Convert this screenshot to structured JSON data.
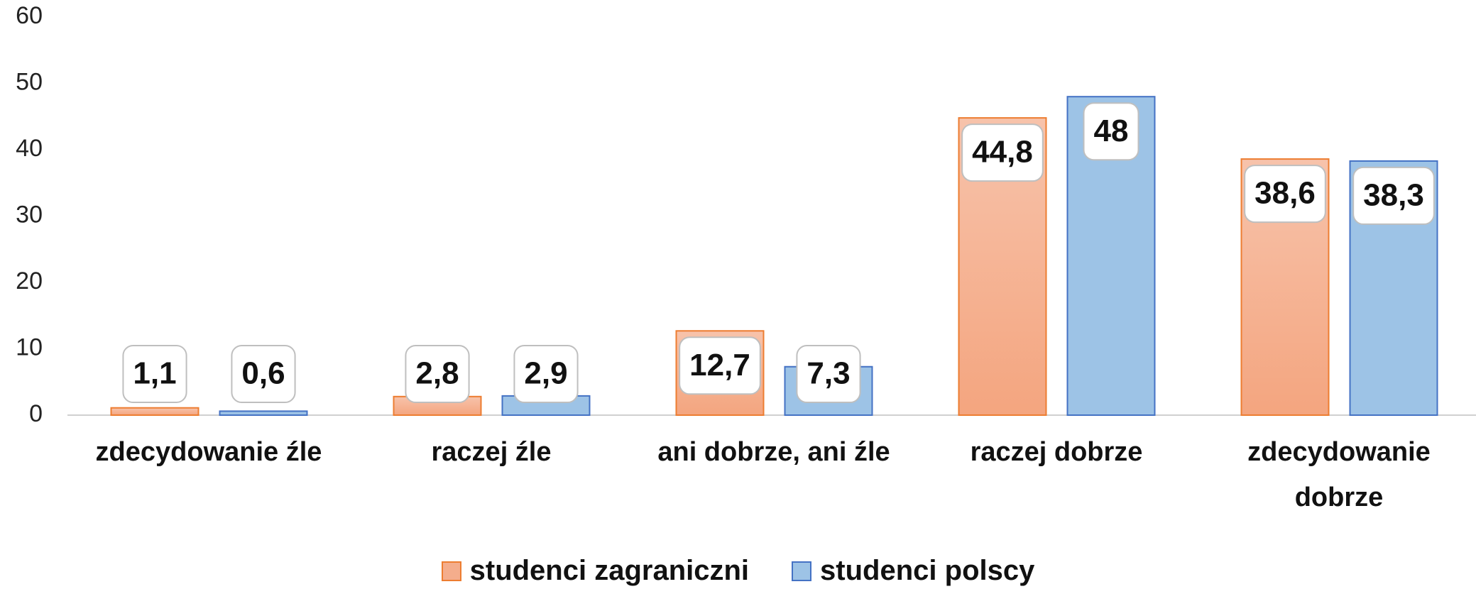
{
  "chart_data": {
    "type": "bar",
    "categories": [
      "zdecydowanie źle",
      "raczej źle",
      "ani dobrze, ani źle",
      "raczej dobrze",
      "zdecydowanie dobrze"
    ],
    "series": [
      {
        "name": "studenci zagraniczni",
        "color": "#f4ad8c",
        "values": [
          1.1,
          2.8,
          12.7,
          44.8,
          38.6
        ],
        "value_labels": [
          "1,1",
          "2,8",
          "12,7",
          "44,8",
          "38,6"
        ]
      },
      {
        "name": "studenci polscy",
        "color": "#9dc3e6",
        "values": [
          0.6,
          2.9,
          7.3,
          48,
          38.3
        ],
        "value_labels": [
          "0,6",
          "2,9",
          "7,3",
          "48",
          "38,3"
        ]
      }
    ],
    "ylim": [
      0,
      60
    ],
    "yticks": [
      0,
      10,
      20,
      30,
      40,
      50,
      60
    ]
  }
}
